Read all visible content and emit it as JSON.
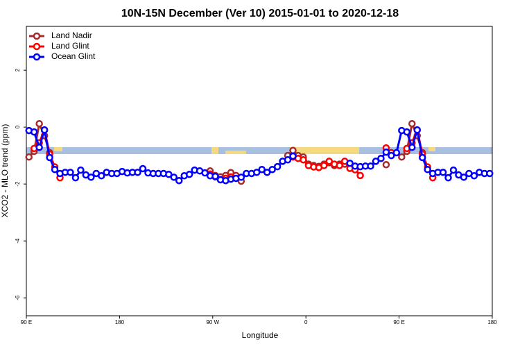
{
  "chart_data": {
    "type": "line",
    "title": "10N-15N December (Ver 10)   2015-01-01 to 2020-12-18",
    "x_label": "Longitude",
    "y_label": "XCO2 - MLO trend (ppm)",
    "xlim": [
      90,
      540
    ],
    "ylim": [
      -6.63,
      3.54
    ],
    "xticks": [
      {
        "value": 90,
        "label": "90 E"
      },
      180,
      {
        "value": 270,
        "label": "90 W"
      },
      {
        "value": 360,
        "label": "0"
      },
      {
        "value": 450,
        "label": "90 E"
      },
      {
        "value": 540,
        "label": "180"
      }
    ],
    "yticks": [
      -6,
      -4,
      -2,
      0,
      2
    ],
    "grid": false,
    "legend": "top-left",
    "x": [
      92.5,
      97.5,
      102.5,
      107.5,
      112.5,
      117.5,
      122.5,
      127.5,
      132.5,
      137.5,
      142.5,
      147.5,
      152.5,
      157.5,
      162.5,
      167.5,
      172.5,
      177.5,
      182.5,
      187.5,
      192.5,
      197.5,
      202.5,
      207.5,
      212.5,
      217.5,
      222.5,
      227.5,
      232.5,
      237.5,
      242.5,
      247.5,
      252.5,
      257.5,
      262.5,
      267.5,
      272.5,
      277.5,
      282.5,
      287.5,
      292.5,
      297.5,
      302.5,
      307.5,
      312.5,
      317.5,
      322.5,
      327.5,
      332.5,
      337.5,
      342.5,
      347.5,
      352.5,
      357.5,
      362.5,
      367.5,
      372.5,
      377.5,
      382.5,
      387.5,
      392.5,
      397.5,
      402.5,
      407.5,
      412.5,
      417.5,
      422.5,
      427.5,
      432.5,
      437.5,
      442.5,
      447.5,
      452.5,
      457.5,
      462.5,
      467.5,
      472.5,
      477.5,
      482.5,
      487.5,
      492.5,
      497.5,
      502.5,
      507.5,
      512.5,
      517.5,
      522.5,
      527.5,
      532.5,
      537.5
    ],
    "series": [
      {
        "name": "Land Nadir",
        "color": "#a52a2a",
        "values": [
          -1.05,
          -0.85,
          0.12,
          -0.3,
          -0.9,
          null,
          null,
          null,
          null,
          null,
          null,
          null,
          null,
          null,
          null,
          null,
          null,
          null,
          null,
          null,
          null,
          null,
          null,
          null,
          null,
          null,
          null,
          null,
          null,
          null,
          null,
          null,
          null,
          null,
          null,
          -1.54,
          -1.7,
          -1.75,
          -1.7,
          -1.6,
          -1.7,
          -1.9,
          null,
          null,
          null,
          null,
          null,
          null,
          null,
          null,
          -1.0,
          -0.82,
          -1.0,
          -1.05,
          -1.3,
          -1.35,
          -1.38,
          -1.3,
          -1.25,
          -1.35,
          -1.3,
          -1.3,
          null,
          null,
          null,
          null,
          null,
          null,
          null,
          -1.32,
          null,
          null,
          -1.05,
          -0.85,
          0.12,
          -0.3,
          -0.9,
          null,
          null,
          null,
          null,
          null,
          null,
          null,
          null,
          null,
          null,
          null,
          null,
          null
        ]
      },
      {
        "name": "Land Glint",
        "color": "#ff0000",
        "values": [
          null,
          -0.75,
          -0.55,
          -0.1,
          -0.95,
          -1.4,
          -1.78,
          null,
          null,
          null,
          null,
          null,
          null,
          null,
          null,
          null,
          null,
          null,
          null,
          null,
          null,
          null,
          null,
          null,
          null,
          null,
          null,
          null,
          null,
          null,
          null,
          null,
          null,
          null,
          null,
          -1.65,
          -1.75,
          -1.85,
          -1.8,
          -1.75,
          -1.8,
          null,
          null,
          null,
          null,
          null,
          null,
          null,
          null,
          null,
          null,
          -1.05,
          -1.1,
          -1.15,
          -1.35,
          -1.4,
          -1.42,
          -1.35,
          -1.2,
          -1.3,
          -1.35,
          -1.2,
          -1.45,
          -1.5,
          -1.7,
          null,
          null,
          null,
          null,
          -0.73,
          -0.9,
          null,
          null,
          -0.75,
          -0.55,
          -0.1,
          -0.95,
          -1.4,
          -1.78,
          null,
          null,
          null,
          null,
          null,
          null,
          null,
          null,
          null,
          null,
          null
        ]
      },
      {
        "name": "Ocean Glint",
        "color": "#0000ff",
        "values": [
          -0.12,
          -0.17,
          -0.71,
          -0.1,
          -1.07,
          -1.49,
          -1.63,
          -1.59,
          -1.59,
          -1.78,
          -1.51,
          -1.68,
          -1.76,
          -1.63,
          -1.71,
          -1.59,
          -1.63,
          -1.63,
          -1.56,
          -1.61,
          -1.59,
          -1.59,
          -1.46,
          -1.61,
          -1.63,
          -1.63,
          -1.63,
          -1.66,
          -1.76,
          -1.88,
          -1.71,
          -1.66,
          -1.51,
          -1.54,
          -1.61,
          -1.71,
          -1.73,
          -1.85,
          -1.88,
          -1.83,
          -1.8,
          -1.76,
          -1.63,
          -1.63,
          -1.59,
          -1.49,
          -1.59,
          -1.49,
          -1.39,
          -1.2,
          -1.15,
          -1.02,
          null,
          null,
          null,
          null,
          null,
          null,
          null,
          null,
          null,
          null,
          -1.27,
          -1.37,
          -1.39,
          -1.37,
          -1.37,
          -1.2,
          -1.1,
          -0.88,
          -1.0,
          -0.9,
          -0.12,
          -0.17,
          -0.71,
          -0.1,
          -1.07,
          -1.49,
          -1.63,
          -1.59,
          -1.59,
          -1.78,
          -1.51,
          -1.68,
          -1.76,
          -1.63,
          -1.71,
          -1.59,
          -1.63,
          -1.63
        ]
      }
    ]
  }
}
